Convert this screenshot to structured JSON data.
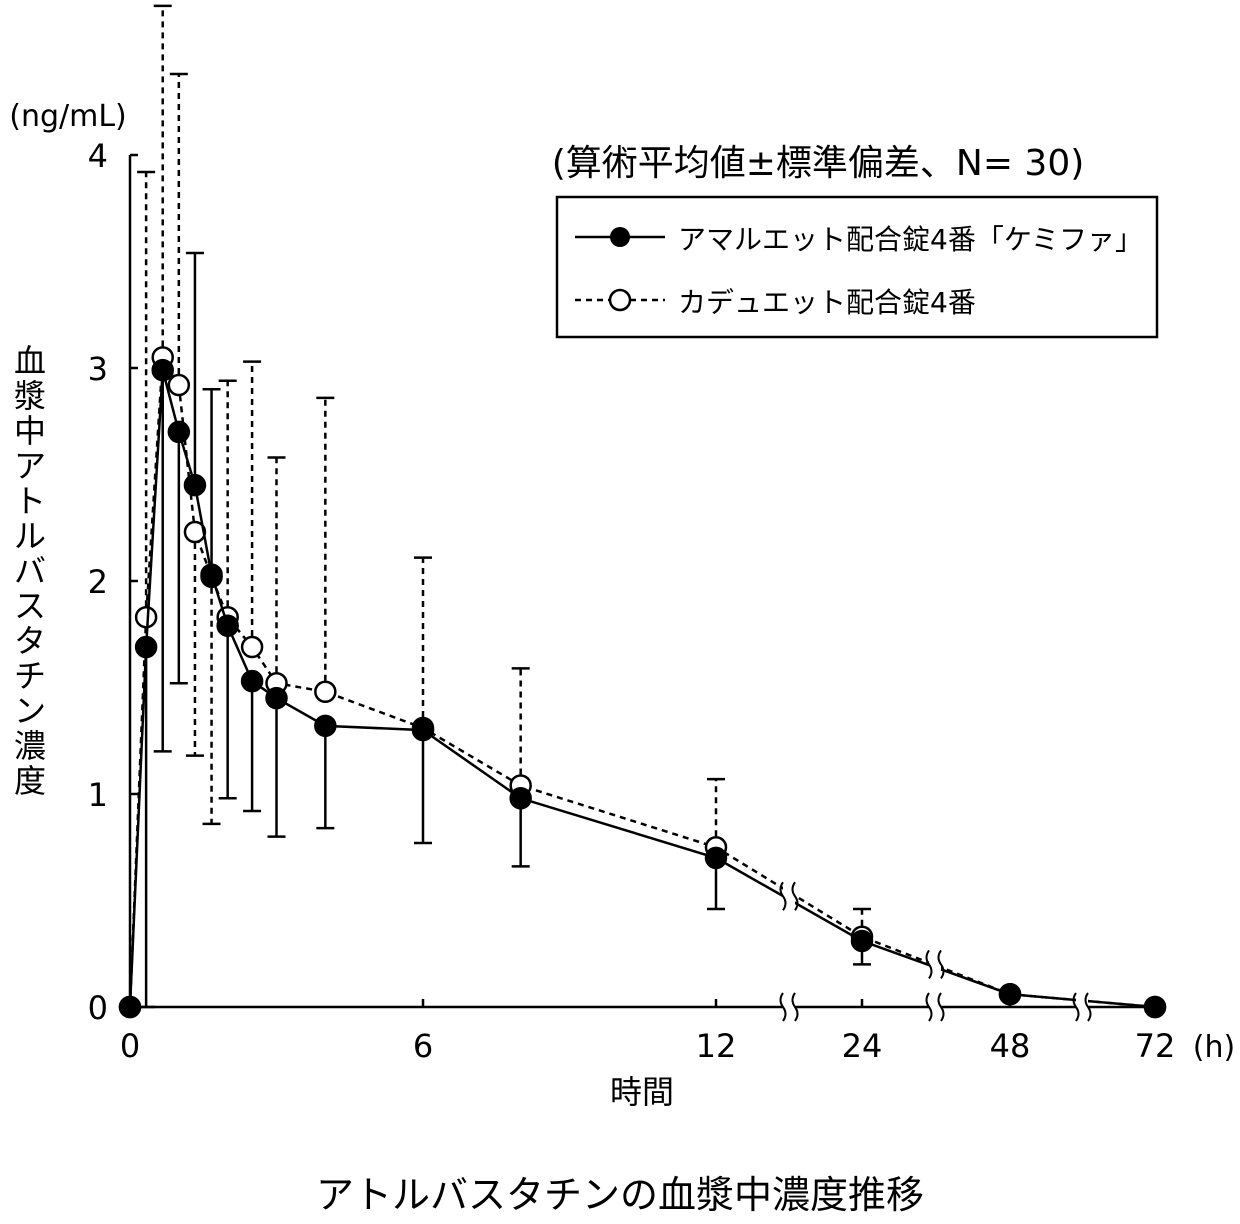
{
  "chart_data": {
    "type": "line",
    "title": "アトルバスタチンの血漿中濃度推移",
    "annotation": "(算術平均値±標準偏差、N= 30)",
    "xlabel": "時間",
    "x_unit": "(h)",
    "ylabel": "血漿中アトルバスタチン濃度",
    "y_unit": "(ng/mL)",
    "ylim": [
      0,
      4
    ],
    "yticks": [
      "0",
      "1",
      "2",
      "3",
      "4"
    ],
    "xticks": [
      "0",
      "6",
      "12",
      "24",
      "48",
      "72"
    ],
    "x_axis_note": "broken axis between 12, 24, 48 and 72",
    "grid": false,
    "legend_position": "top-right",
    "x": [
      0,
      0.33,
      0.67,
      1,
      1.33,
      1.67,
      2,
      2.5,
      3,
      4,
      6,
      8,
      12,
      24,
      48,
      72
    ],
    "series": [
      {
        "name": "アマルエット配合錠4番「ケミファ」",
        "marker": "filled-circle",
        "line": "solid",
        "values": [
          0,
          1.69,
          2.99,
          2.7,
          2.45,
          2.03,
          1.79,
          1.53,
          1.45,
          1.32,
          1.3,
          0.98,
          0.7,
          0.31,
          0.06,
          0
        ],
        "error_bar_ends": [
          null,
          0,
          1.2,
          1.52,
          3.54,
          2.9,
          0.98,
          0.92,
          0.8,
          0.84,
          0.77,
          0.66,
          0.46,
          0.2,
          null,
          null
        ]
      },
      {
        "name": "カデュエット配合錠4番",
        "marker": "open-circle",
        "line": "dashed",
        "values": [
          0,
          1.83,
          3.05,
          2.92,
          2.23,
          2.02,
          1.83,
          1.69,
          1.52,
          1.48,
          1.31,
          1.04,
          0.75,
          0.33,
          0.06,
          0
        ],
        "error_bar_ends": [
          null,
          3.92,
          4.7,
          4.38,
          1.18,
          0.86,
          2.94,
          3.03,
          2.58,
          2.86,
          2.11,
          1.59,
          1.07,
          0.46,
          null,
          null
        ]
      }
    ]
  }
}
